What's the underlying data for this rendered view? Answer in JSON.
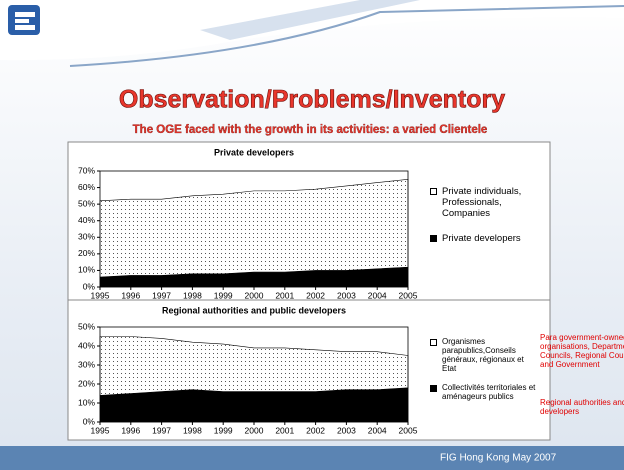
{
  "slide_title": "Observation/Problems/Inventory",
  "subtitle": "The OGE faced with the growth in its activities: a varied Clientele",
  "footer": "FIG Hong Kong May 2007",
  "notes": [
    "Para government-owned organisations, Departmental Councils, Regional Councils and Government",
    "Regional authorities and public developers"
  ],
  "chart_data": [
    {
      "type": "area",
      "stacked": true,
      "title": "Private developers",
      "categories": [
        "1995",
        "1996",
        "1997",
        "1998",
        "1999",
        "2000",
        "2001",
        "2002",
        "2003",
        "2004",
        "2005"
      ],
      "series": [
        {
          "name": "Private developers",
          "color": "#000000",
          "pattern": "solid",
          "values": [
            6,
            7,
            7,
            8,
            8,
            9,
            9,
            10,
            10,
            11,
            12
          ]
        },
        {
          "name": "Private individuals, Professionals, Companies",
          "color": "#ffffff",
          "pattern": "dots",
          "values": [
            46,
            46,
            46,
            47,
            48,
            49,
            49,
            49,
            51,
            52,
            53
          ]
        }
      ],
      "ylim": [
        0,
        70
      ],
      "yticks": [
        {
          "value": 0,
          "label": "0%"
        },
        {
          "value": 10,
          "label": "10%"
        },
        {
          "value": 20,
          "label": "20%"
        },
        {
          "value": 30,
          "label": "30%"
        },
        {
          "value": 40,
          "label": "40%"
        },
        {
          "value": 50,
          "label": "50%"
        },
        {
          "value": 60,
          "label": "60%"
        },
        {
          "value": 70,
          "label": "70%"
        }
      ],
      "grid": false,
      "legend": "right"
    },
    {
      "type": "area",
      "stacked": true,
      "title": "Regional authorities and public developers",
      "categories": [
        "1995",
        "1996",
        "1997",
        "1998",
        "1999",
        "2000",
        "2001",
        "2002",
        "2003",
        "2004",
        "2005"
      ],
      "series": [
        {
          "name": "Collectivités territoriales et aménageurs publics",
          "color": "#000000",
          "pattern": "solid",
          "values": [
            14,
            15,
            16,
            17,
            16,
            16,
            16,
            16,
            17,
            17,
            18
          ]
        },
        {
          "name": "Organismes parapublics,Conseils généraux, régionaux et Etat",
          "color": "#ffffff",
          "pattern": "dots",
          "values": [
            31,
            30,
            28,
            25,
            25,
            23,
            23,
            22,
            20,
            20,
            17
          ]
        }
      ],
      "ylim": [
        0,
        50
      ],
      "yticks": [
        {
          "value": 0,
          "label": "0%"
        },
        {
          "value": 10,
          "label": "10%"
        },
        {
          "value": 20,
          "label": "20%"
        },
        {
          "value": 30,
          "label": "30%"
        },
        {
          "value": 40,
          "label": "40%"
        },
        {
          "value": 50,
          "label": "50%"
        }
      ],
      "grid": false,
      "legend": "right"
    }
  ]
}
